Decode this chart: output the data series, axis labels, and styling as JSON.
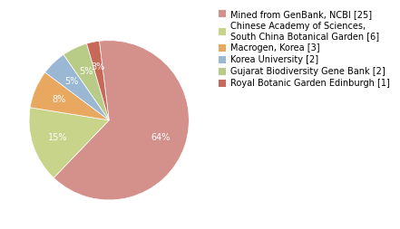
{
  "labels": [
    "Mined from GenBank, NCBI [25]",
    "Chinese Academy of Sciences,\nSouth China Botanical Garden [6]",
    "Macrogen, Korea [3]",
    "Korea University [2]",
    "Gujarat Biodiversity Gene Bank [2]",
    "Royal Botanic Garden Edinburgh [1]"
  ],
  "values": [
    25,
    6,
    3,
    2,
    2,
    1
  ],
  "colors": [
    "#d4908a",
    "#c8d48a",
    "#e8a860",
    "#9ab8d4",
    "#b8cc88",
    "#c86858"
  ],
  "startangle": 97,
  "autopct_fontsize": 7,
  "legend_fontsize": 7,
  "background_color": "#ffffff",
  "text_color": "#ffffff"
}
